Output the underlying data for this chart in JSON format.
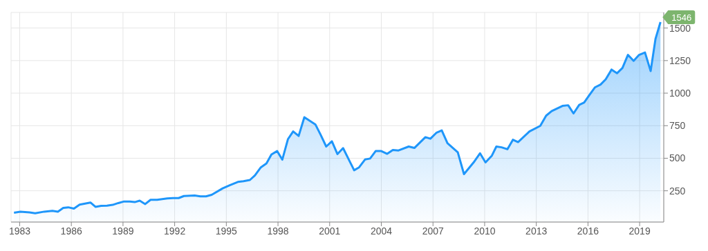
{
  "chart_data": {
    "type": "area",
    "x": [
      1982.67,
      1983.04,
      1983.57,
      1983.9,
      1984.43,
      1984.9,
      1985.22,
      1985.53,
      1985.82,
      1986.15,
      1986.48,
      1987.11,
      1987.4,
      1987.73,
      1988.07,
      1988.4,
      1988.73,
      1989.06,
      1989.4,
      1989.68,
      1989.97,
      1990.29,
      1990.6,
      1990.98,
      1991.57,
      1991.9,
      1992.23,
      1992.54,
      1993.16,
      1993.49,
      1993.82,
      1994.15,
      1994.79,
      1995.2,
      1995.67,
      1996.0,
      1996.37,
      1996.66,
      1996.99,
      1997.33,
      1997.62,
      1997.95,
      1998.25,
      1998.58,
      1998.88,
      1999.2,
      1999.53,
      2000.17,
      2000.47,
      2000.8,
      2001.13,
      2001.45,
      2001.78,
      2002.42,
      2002.71,
      2003.06,
      2003.35,
      2003.67,
      2004.0,
      2004.34,
      2004.67,
      2005.0,
      2005.59,
      2005.92,
      2006.56,
      2006.85,
      2007.21,
      2007.51,
      2007.84,
      2008.44,
      2008.8,
      2009.36,
      2009.73,
      2010.05,
      2010.42,
      2010.68,
      2010.98,
      2011.32,
      2011.64,
      2011.94,
      2012.6,
      2013.23,
      2013.57,
      2013.89,
      2014.52,
      2014.85,
      2015.16,
      2015.49,
      2015.78,
      2016.08,
      2016.4,
      2016.73,
      2017.03,
      2017.37,
      2017.69,
      2018.0,
      2018.32,
      2018.65,
      2018.97,
      2019.31,
      2019.64,
      2019.92,
      2020.21
    ],
    "series": [
      {
        "color": "#1e96fa",
        "values": [
          82,
          89,
          84,
          78,
          90,
          96,
          90,
          118,
          123,
          113,
          144,
          160,
          127,
          134,
          136,
          142,
          156,
          168,
          168,
          163,
          174,
          148,
          181,
          181,
          191,
          194,
          194,
          210,
          214,
          207,
          207,
          219,
          269,
          293,
          318,
          324,
          333,
          368,
          428,
          460,
          529,
          555,
          489,
          647,
          706,
          671,
          815,
          760,
          682,
          590,
          630,
          532,
          578,
          408,
          430,
          491,
          498,
          555,
          555,
          534,
          564,
          560,
          590,
          579,
          662,
          650,
          697,
          714,
          616,
          546,
          378,
          468,
          538,
          468,
          520,
          590,
          584,
          569,
          642,
          624,
          706,
          749,
          827,
          862,
          902,
          907,
          844,
          910,
          928,
          985,
          1044,
          1066,
          1106,
          1181,
          1153,
          1193,
          1294,
          1248,
          1294,
          1312,
          1170,
          1416,
          1546
        ]
      }
    ],
    "xlim": [
      1982.5,
      2020.4
    ],
    "xticks": [
      1983,
      1986,
      1989,
      1992,
      1995,
      1998,
      2001,
      2004,
      2007,
      2010,
      2013,
      2016,
      2019
    ],
    "ylim": [
      10,
      1620
    ],
    "yticks": [
      250,
      500,
      750,
      1000,
      1250,
      1500
    ],
    "grid": true,
    "annotations": [
      {
        "text": "1546",
        "x": 2020.21,
        "y": 1546
      }
    ]
  }
}
